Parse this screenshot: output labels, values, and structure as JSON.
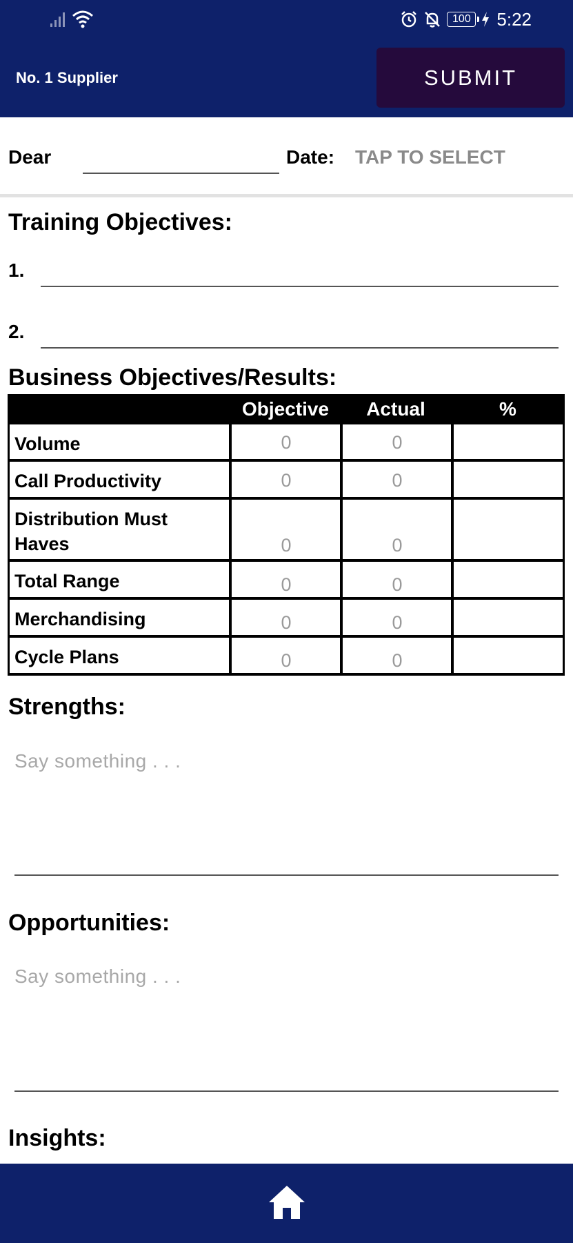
{
  "status": {
    "time": "5:22",
    "battery": "100"
  },
  "header": {
    "title": "No. 1 Supplier",
    "submit_label": "SUBMIT"
  },
  "form": {
    "dear_label": "Dear",
    "date_label": "Date:",
    "date_value": "TAP TO SELECT"
  },
  "training": {
    "heading": "Training Objectives:",
    "items": [
      "1.",
      "2."
    ]
  },
  "business": {
    "heading": "Business Objectives/Results:",
    "columns": [
      "Objective",
      "Actual",
      "%"
    ],
    "rows": [
      {
        "label": "Volume",
        "objective": "0",
        "actual": "0",
        "percent": ""
      },
      {
        "label": "Call Productivity",
        "objective": "0",
        "actual": "0",
        "percent": ""
      },
      {
        "label": "Distribution Must Haves",
        "objective": "0",
        "actual": "0",
        "percent": ""
      },
      {
        "label": "Total Range",
        "objective": "0",
        "actual": "0",
        "percent": ""
      },
      {
        "label": "Merchandising",
        "objective": "0",
        "actual": "0",
        "percent": ""
      },
      {
        "label": "Cycle Plans",
        "objective": "0",
        "actual": "0",
        "percent": ""
      }
    ]
  },
  "strengths": {
    "heading": "Strengths:",
    "placeholder": "Say something . . ."
  },
  "opportunities": {
    "heading": "Opportunities:",
    "placeholder": "Say something . . ."
  },
  "insights": {
    "heading": "Insights:"
  },
  "nav": {
    "icon": "home-icon"
  },
  "colors": {
    "header": "#0e216a",
    "submit": "#250a3c"
  }
}
